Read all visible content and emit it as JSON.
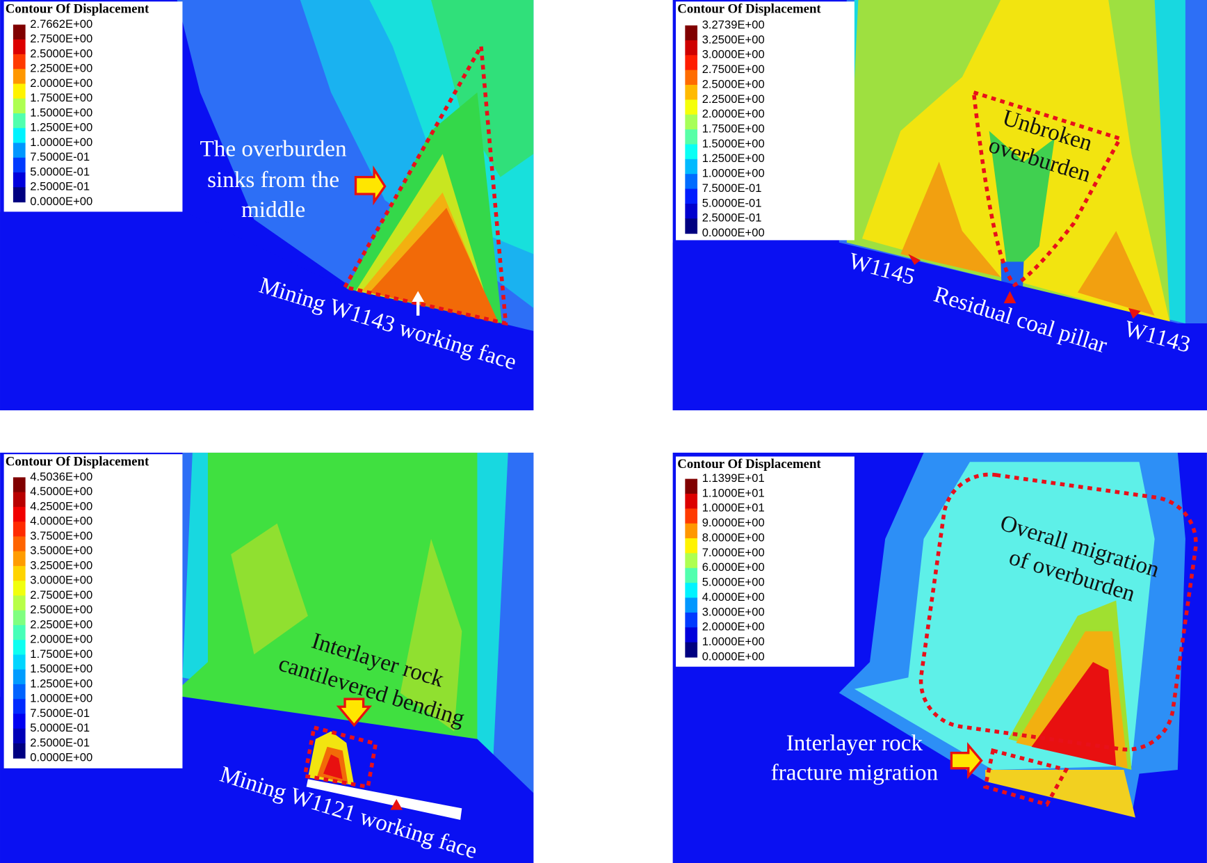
{
  "panels": [
    {
      "legend_title": "Contour Of Displacement",
      "legend_labels": [
        "2.7662E+00",
        "2.7500E+00",
        "2.5000E+00",
        "2.2500E+00",
        "2.0000E+00",
        "1.7500E+00",
        "1.5000E+00",
        "1.2500E+00",
        "1.0000E+00",
        "7.5000E-01",
        "5.0000E-01",
        "2.5000E-01",
        "0.0000E+00"
      ],
      "annotations": [
        "The overburden",
        "sinks from the",
        "middle",
        "Mining W1143 working face"
      ]
    },
    {
      "legend_title": "Contour Of Displacement",
      "legend_labels": [
        "3.2739E+00",
        "3.2500E+00",
        "3.0000E+00",
        "2.7500E+00",
        "2.5000E+00",
        "2.2500E+00",
        "2.0000E+00",
        "1.7500E+00",
        "1.5000E+00",
        "1.2500E+00",
        "1.0000E+00",
        "7.5000E-01",
        "5.0000E-01",
        "2.5000E-01",
        "0.0000E+00"
      ],
      "annotations": [
        "Unbroken",
        "overburden",
        "W1145",
        "Residual coal pillar",
        "W1143"
      ]
    },
    {
      "legend_title": "Contour Of Displacement",
      "legend_labels": [
        "4.5036E+00",
        "4.5000E+00",
        "4.2500E+00",
        "4.0000E+00",
        "3.7500E+00",
        "3.5000E+00",
        "3.2500E+00",
        "3.0000E+00",
        "2.7500E+00",
        "2.5000E+00",
        "2.2500E+00",
        "2.0000E+00",
        "1.7500E+00",
        "1.5000E+00",
        "1.2500E+00",
        "1.0000E+00",
        "7.5000E-01",
        "5.0000E-01",
        "2.5000E-01",
        "0.0000E+00"
      ],
      "annotations": [
        "Interlayer rock",
        "cantilevered bending",
        "Mining W1121 working face"
      ]
    },
    {
      "legend_title": "Contour Of Displacement",
      "legend_labels": [
        "1.1399E+01",
        "1.1000E+01",
        "1.0000E+01",
        "9.0000E+00",
        "8.0000E+00",
        "7.0000E+00",
        "6.0000E+00",
        "5.0000E+00",
        "4.0000E+00",
        "3.0000E+00",
        "2.0000E+00",
        "1.0000E+00",
        "0.0000E+00"
      ],
      "annotations": [
        "Overall migration",
        "of overburden",
        "Interlayer rock",
        "fracture migration"
      ]
    }
  ]
}
